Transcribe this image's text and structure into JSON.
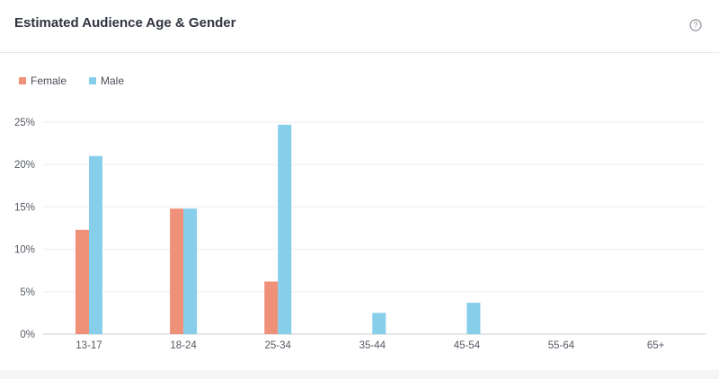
{
  "card": {
    "title": "Estimated Audience Age & Gender",
    "help_icon": "question-circle-icon"
  },
  "colors": {
    "female": "#ef9079",
    "male": "#87ceeb",
    "grid": "#eeeeee",
    "axis": "#c8ccd2"
  },
  "chart_data": {
    "type": "bar",
    "categories": [
      "13-17",
      "18-24",
      "25-34",
      "35-44",
      "45-54",
      "55-64",
      "65+"
    ],
    "series": [
      {
        "name": "Female",
        "values": [
          12.3,
          14.8,
          6.2,
          0,
          0,
          0,
          0
        ]
      },
      {
        "name": "Male",
        "values": [
          21.0,
          14.8,
          24.7,
          2.5,
          3.7,
          0,
          0
        ]
      }
    ],
    "yticks": [
      "0%",
      "5%",
      "10%",
      "15%",
      "20%",
      "25%"
    ],
    "ylim": [
      0,
      25
    ],
    "ylabel": "",
    "xlabel": "",
    "legend_position": "top-left",
    "grid": true
  }
}
